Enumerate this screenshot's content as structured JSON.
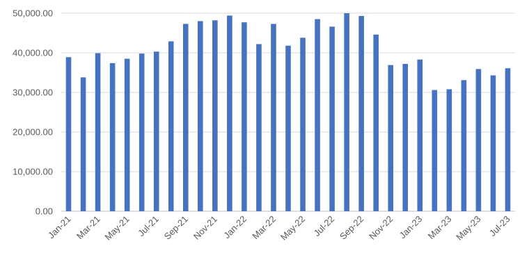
{
  "chart_data": {
    "type": "bar",
    "title": "",
    "xlabel": "",
    "ylabel": "",
    "ylim": [
      0,
      50000
    ],
    "yticks": [
      "0.00",
      "10,000.00",
      "20,000.00",
      "30,000.00",
      "40,000.00",
      "50,000.00"
    ],
    "grid": true,
    "legend": "none",
    "bar_color": "#4472c4",
    "categories": [
      "Jan-21",
      "Feb-21",
      "Mar-21",
      "Apr-21",
      "May-21",
      "Jun-21",
      "Jul-21",
      "Aug-21",
      "Sep-21",
      "Oct-21",
      "Nov-21",
      "Dec-21",
      "Jan-22",
      "Feb-22",
      "Mar-22",
      "Apr-22",
      "May-22",
      "Jun-22",
      "Jul-22",
      "Aug-22",
      "Sep-22",
      "Oct-22",
      "Nov-22",
      "Dec-22",
      "Jan-23",
      "Feb-23",
      "Mar-23",
      "Apr-23",
      "May-23",
      "Jun-23",
      "Jul-23"
    ],
    "xtick_labels": [
      "Jan-21",
      "",
      "Mar-21",
      "",
      "May-21",
      "",
      "Jul-21",
      "",
      "Sep-21",
      "",
      "Nov-21",
      "",
      "Jan-22",
      "",
      "Mar-22",
      "",
      "May-22",
      "",
      "Jul-22",
      "",
      "Sep-22",
      "",
      "Nov-22",
      "",
      "Jan-23",
      "",
      "Mar-23",
      "",
      "May-23",
      "",
      "Jul-23"
    ],
    "values": [
      38900,
      33800,
      39900,
      37400,
      38500,
      39800,
      40300,
      42900,
      47300,
      48000,
      48200,
      49400,
      47700,
      42200,
      47300,
      41800,
      43800,
      48500,
      46600,
      50000,
      49300,
      44600,
      36900,
      37200,
      38300,
      30600,
      30800,
      33100,
      35900,
      34300,
      36100
    ]
  }
}
